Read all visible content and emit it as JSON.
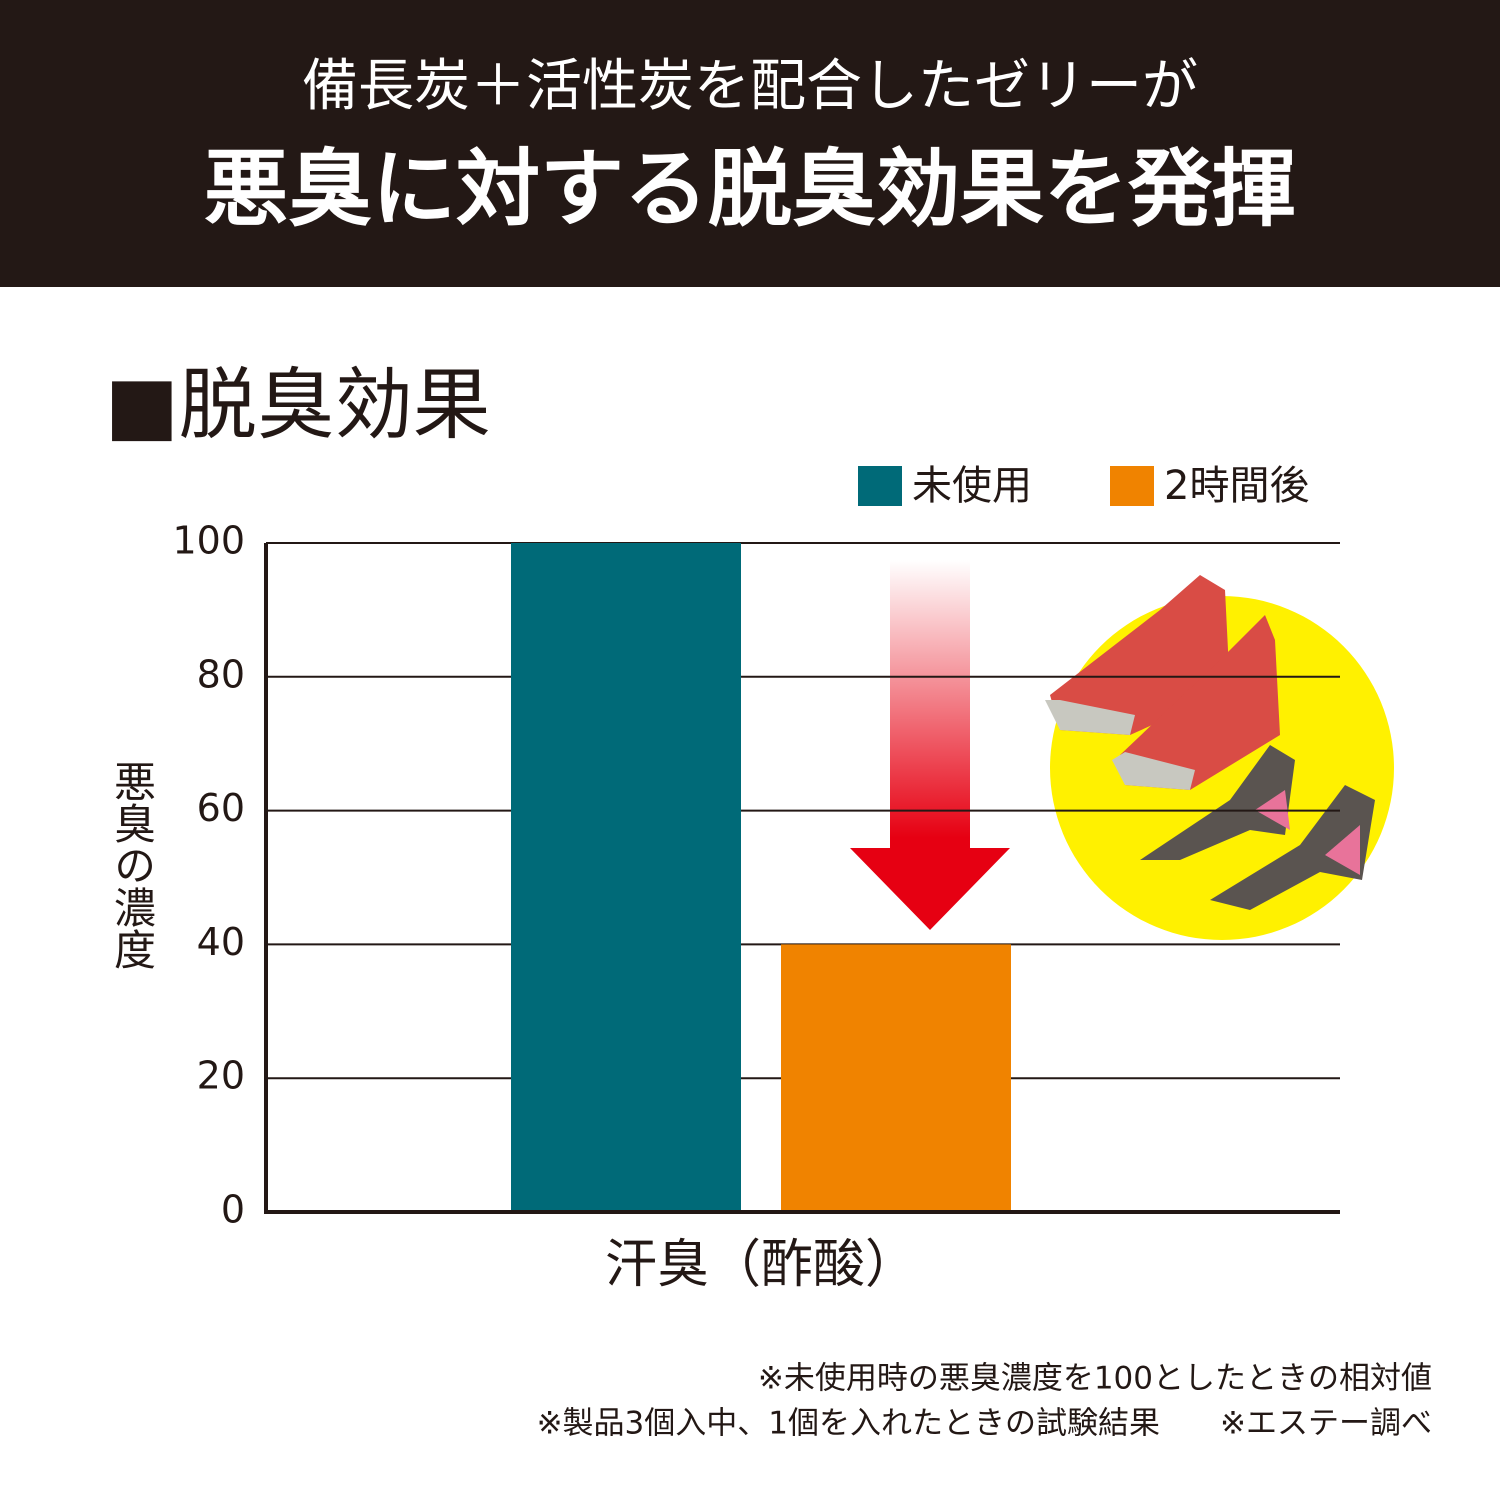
{
  "header": {
    "line1": "備長炭＋活性炭を配合したゼリーが",
    "line2": "悪臭に対する脱臭効果を発揮"
  },
  "chart_data": {
    "type": "bar",
    "title": "■脱臭効果",
    "ylabel": "悪臭の濃度",
    "categories": [
      "汗臭（酢酸）"
    ],
    "series": [
      {
        "name": "未使用",
        "color": "#006a78",
        "values": [
          100
        ]
      },
      {
        "name": "2時間後",
        "color": "#f08300",
        "values": [
          40
        ]
      }
    ],
    "ylim": [
      0,
      100
    ],
    "yticks": [
      0,
      20,
      40,
      60,
      80,
      100
    ],
    "grid": true
  },
  "notes": [
    "※未使用時の悪臭濃度を100としたときの相対値",
    "※製品3個入中、1個を入れたときの試験結果",
    "※エステー調べ"
  ]
}
